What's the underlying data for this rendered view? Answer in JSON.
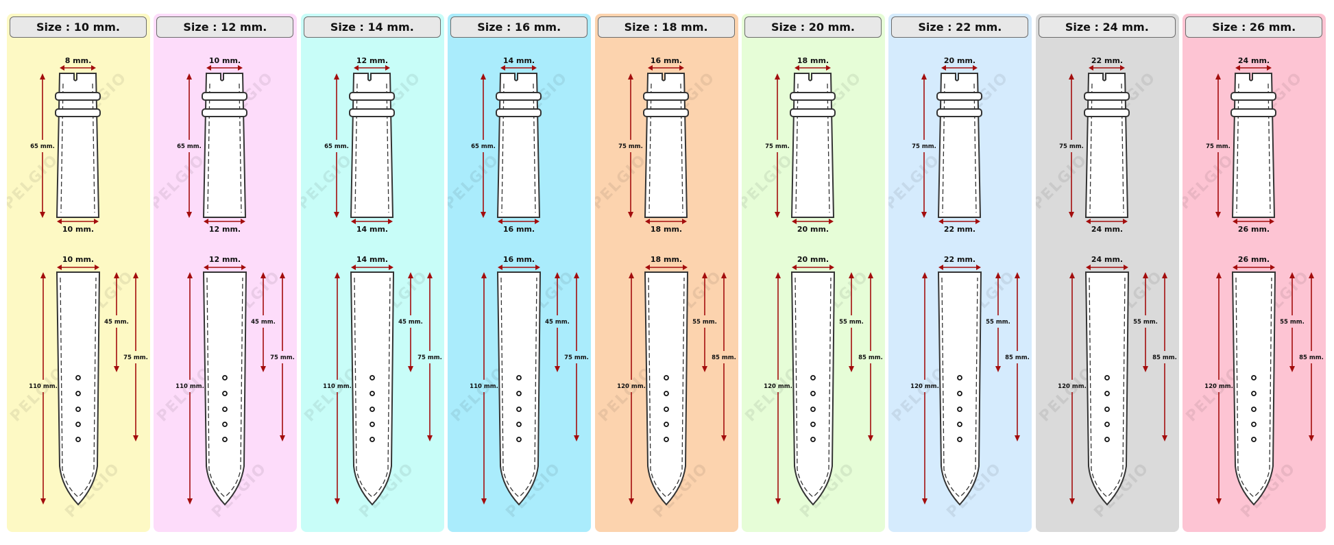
{
  "watermark": "PELGIO",
  "colors": {
    "arrow": "#a30d0d",
    "outline": "#333333"
  },
  "panels": [
    {
      "title": "Size : 10 mm.",
      "bg": "#fdf9c4",
      "buckle_width": "8 mm.",
      "lug_width_top": "10 mm.",
      "lug_width_bottom": "10 mm.",
      "short_length": "65 mm.",
      "long_length": "110 mm.",
      "first_hole": "45 mm.",
      "last_hole": "75 mm."
    },
    {
      "title": "Size : 12 mm.",
      "bg": "#fddcfa",
      "buckle_width": "10 mm.",
      "lug_width_top": "12 mm.",
      "lug_width_bottom": "12 mm.",
      "short_length": "65 mm.",
      "long_length": "110 mm.",
      "first_hole": "45 mm.",
      "last_hole": "75 mm."
    },
    {
      "title": "Size : 14 mm.",
      "bg": "#c8fdf8",
      "buckle_width": "12 mm.",
      "lug_width_top": "14 mm.",
      "lug_width_bottom": "14 mm.",
      "short_length": "65 mm.",
      "long_length": "110 mm.",
      "first_hole": "45 mm.",
      "last_hole": "75 mm."
    },
    {
      "title": "Size : 16 mm.",
      "bg": "#aaecfc",
      "buckle_width": "14 mm.",
      "lug_width_top": "16 mm.",
      "lug_width_bottom": "16 mm.",
      "short_length": "65 mm.",
      "long_length": "110 mm.",
      "first_hole": "45 mm.",
      "last_hole": "75 mm."
    },
    {
      "title": "Size : 18 mm.",
      "bg": "#fcd3ae",
      "buckle_width": "16 mm.",
      "lug_width_top": "18 mm.",
      "lug_width_bottom": "18 mm.",
      "short_length": "75 mm.",
      "long_length": "120 mm.",
      "first_hole": "55 mm.",
      "last_hole": "85 mm."
    },
    {
      "title": "Size : 20 mm.",
      "bg": "#e6fdd7",
      "buckle_width": "18 mm.",
      "lug_width_top": "20 mm.",
      "lug_width_bottom": "20 mm.",
      "short_length": "75 mm.",
      "long_length": "120 mm.",
      "first_hole": "55 mm.",
      "last_hole": "85 mm."
    },
    {
      "title": "Size : 22 mm.",
      "bg": "#d5ebfd",
      "buckle_width": "20 mm.",
      "lug_width_top": "22 mm.",
      "lug_width_bottom": "22 mm.",
      "short_length": "75 mm.",
      "long_length": "120 mm.",
      "first_hole": "55 mm.",
      "last_hole": "85 mm."
    },
    {
      "title": "Size : 24 mm.",
      "bg": "#dadada",
      "buckle_width": "22 mm.",
      "lug_width_top": "24 mm.",
      "lug_width_bottom": "24 mm.",
      "short_length": "75 mm.",
      "long_length": "120 mm.",
      "first_hole": "55 mm.",
      "last_hole": "85 mm."
    },
    {
      "title": "Size : 26 mm.",
      "bg": "#fdc4d3",
      "buckle_width": "24 mm.",
      "lug_width_top": "26 mm.",
      "lug_width_bottom": "26 mm.",
      "short_length": "75 mm.",
      "long_length": "120 mm.",
      "first_hole": "55 mm.",
      "last_hole": "85 mm."
    }
  ]
}
